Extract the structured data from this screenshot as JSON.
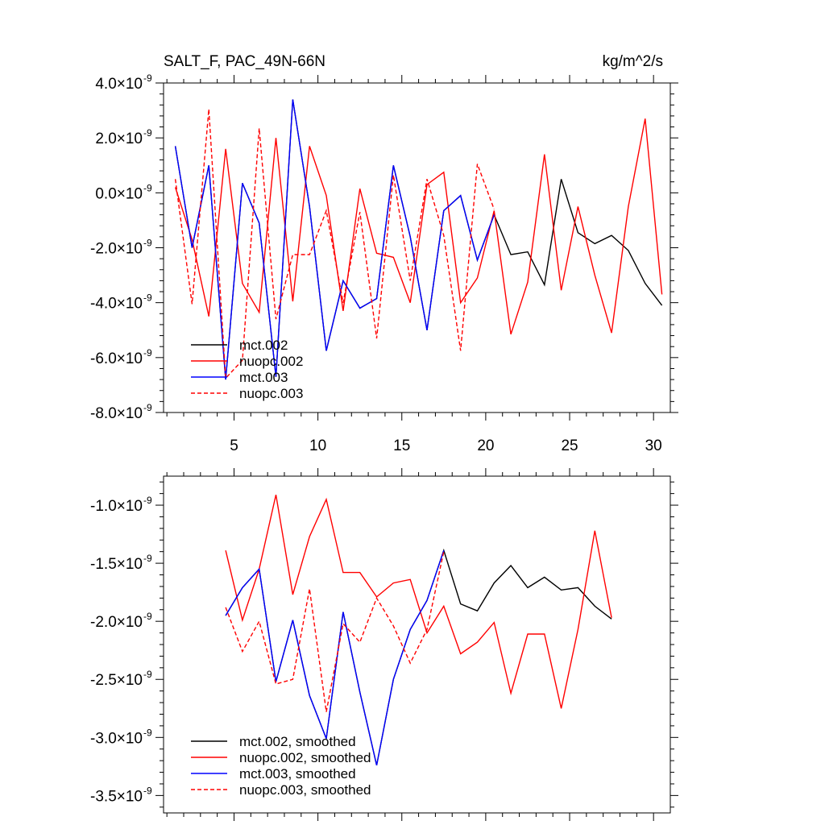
{
  "chart_data": [
    {
      "type": "line",
      "title": "SALT_F, PAC_49N-66N",
      "units": "kg/m^2/s",
      "xlabel": "",
      "ylabel": "",
      "xlim": [
        0.8,
        31.0
      ],
      "ylim": [
        -8e-09,
        4e-09
      ],
      "xticks": [
        5,
        10,
        15,
        20,
        25,
        30
      ],
      "xtick_labels": [
        "5",
        "10",
        "15",
        "20",
        "25",
        "30"
      ],
      "yticks": [
        4e-09,
        2e-09,
        0.0,
        -2e-09,
        -4e-09,
        -6e-09,
        -8e-09
      ],
      "ytick_labels": [
        {
          "mantissa": "4.0",
          "exponent": "-9"
        },
        {
          "mantissa": "2.0",
          "exponent": "-9"
        },
        {
          "mantissa": "0.0",
          "exponent": "-9"
        },
        {
          "mantissa": "-2.0",
          "exponent": "-9"
        },
        {
          "mantissa": "-4.0",
          "exponent": "-9"
        },
        {
          "mantissa": "-6.0",
          "exponent": "-9"
        },
        {
          "mantissa": "-8.0",
          "exponent": "-9"
        }
      ],
      "times_symbol": "×10",
      "grid": false,
      "legend_position": "bottom-left",
      "series": [
        {
          "name": "mct.002",
          "color": "#000000",
          "dash": "solid",
          "x": [
            1.5,
            2.5,
            3.5,
            4.5,
            5.5,
            6.5,
            7.5,
            8.5,
            9.5,
            10.5,
            11.5,
            12.5,
            13.5,
            14.5,
            15.5,
            16.5,
            17.5,
            18.5,
            19.5,
            20.5,
            21.5,
            22.5,
            23.5,
            24.5,
            25.5,
            26.5,
            27.5,
            28.5,
            29.5,
            30.5
          ],
          "y": [
            1.7e-09,
            -2e-09,
            1e-09,
            -6.8e-09,
            3.5e-10,
            -1.1e-09,
            -6.7e-09,
            3.4e-09,
            -5e-10,
            -5.75e-09,
            -3.2e-09,
            -4.2e-09,
            -3.85e-09,
            1e-09,
            -1.6e-09,
            -5e-09,
            -6.5e-10,
            -1e-10,
            -2.45e-09,
            -8e-10,
            -2.25e-09,
            -2.15e-09,
            -3.35e-09,
            5e-10,
            -1.45e-09,
            -1.85e-09,
            -1.55e-09,
            -2.1e-09,
            -3.3e-09,
            -4.1e-09
          ]
        },
        {
          "name": "nuopc.002",
          "color": "#ff0000",
          "dash": "solid",
          "x": [
            1.5,
            2.5,
            3.5,
            4.5,
            5.5,
            6.5,
            7.5,
            8.5,
            9.5,
            10.5,
            11.5,
            12.5,
            13.5,
            14.5,
            15.5,
            16.5,
            17.5,
            18.5,
            19.5,
            20.5,
            21.5,
            22.5,
            23.5,
            24.5,
            25.5,
            26.5,
            27.5,
            28.5,
            29.5,
            30.5
          ],
          "y": [
            2e-10,
            -1.7e-09,
            -4.5e-09,
            1.6e-09,
            -3.3e-09,
            -4.35e-09,
            2e-09,
            -3.95e-09,
            1.7e-09,
            -1e-10,
            -4.3e-09,
            1.5e-10,
            -2.2e-09,
            -2.35e-09,
            -4e-09,
            3e-10,
            7.5e-10,
            -4e-09,
            -3.1e-09,
            -6.5e-10,
            -5.15e-09,
            -3.25e-09,
            1.4e-09,
            -3.55e-09,
            -5e-10,
            -3e-09,
            -5.1e-09,
            -5e-10,
            2.7e-09,
            -3.7e-09
          ]
        },
        {
          "name": "mct.003",
          "color": "#0000ff",
          "dash": "solid",
          "x": [
            1.5,
            2.5,
            3.5,
            4.5,
            5.5,
            6.5,
            7.5,
            8.5,
            9.5,
            10.5,
            11.5,
            12.5,
            13.5,
            14.5,
            15.5,
            16.5,
            17.5,
            18.5,
            19.5,
            20.5
          ],
          "y": [
            1.7e-09,
            -2e-09,
            1e-09,
            -6.8e-09,
            3.5e-10,
            -1.1e-09,
            -6.7e-09,
            3.4e-09,
            -5e-10,
            -5.75e-09,
            -3.2e-09,
            -4.2e-09,
            -3.85e-09,
            1e-09,
            -1.6e-09,
            -5e-09,
            -6.5e-10,
            -1e-10,
            -2.45e-09,
            -8e-10
          ]
        },
        {
          "name": "nuopc.003",
          "color": "#ff0000",
          "dash": "dashed",
          "x": [
            1.5,
            2.5,
            3.5,
            4.5,
            5.5,
            6.5,
            7.5,
            8.5,
            9.5,
            10.5,
            11.5,
            12.5,
            13.5,
            14.5,
            15.5,
            16.5,
            17.5,
            18.5,
            19.5,
            20.5
          ],
          "y": [
            5e-10,
            -4.05e-09,
            3.05e-09,
            -6.75e-09,
            -6.1e-09,
            2.35e-09,
            -4.6e-09,
            -2.25e-09,
            -2.25e-09,
            -6.5e-10,
            -4e-09,
            -7e-10,
            -5.3e-09,
            6.5e-10,
            -3.2e-09,
            5e-10,
            -1.55e-09,
            -5.75e-09,
            1.05e-09,
            -6e-10
          ]
        }
      ]
    },
    {
      "type": "line",
      "title": "",
      "xlabel": "",
      "ylabel": "",
      "xlim": [
        0.8,
        31.0
      ],
      "ylim": [
        -3.65e-09,
        -7.5e-10
      ],
      "xticks": [
        5,
        10,
        15,
        20,
        25,
        30
      ],
      "xtick_labels": [],
      "yticks": [
        -1e-09,
        -1.5e-09,
        -2e-09,
        -2.5e-09,
        -3e-09,
        -3.5e-09
      ],
      "ytick_labels": [
        {
          "mantissa": "-1.0",
          "exponent": "-9"
        },
        {
          "mantissa": "-1.5",
          "exponent": "-9"
        },
        {
          "mantissa": "-2.0",
          "exponent": "-9"
        },
        {
          "mantissa": "-2.5",
          "exponent": "-9"
        },
        {
          "mantissa": "-3.0",
          "exponent": "-9"
        },
        {
          "mantissa": "-3.5",
          "exponent": "-9"
        }
      ],
      "times_symbol": "×10",
      "grid": false,
      "legend_position": "bottom-left",
      "series": [
        {
          "name": "mct.002, smoothed",
          "color": "#000000",
          "dash": "solid",
          "x": [
            4.5,
            5.5,
            6.5,
            7.5,
            8.5,
            9.5,
            10.5,
            11.5,
            12.5,
            13.5,
            14.5,
            15.5,
            16.5,
            17.5,
            18.5,
            19.5,
            20.5,
            21.5,
            22.5,
            23.5,
            24.5,
            25.5,
            26.5,
            27.5
          ],
          "y": [
            -1.95e-09,
            -1.71e-09,
            -1.55e-09,
            -2.52e-09,
            -1.99e-09,
            -2.64e-09,
            -3.01e-09,
            -1.92e-09,
            -2.61e-09,
            -3.24e-09,
            -2.5e-09,
            -2.07e-09,
            -1.82e-09,
            -1.39e-09,
            -1.85e-09,
            -1.91e-09,
            -1.67e-09,
            -1.52e-09,
            -1.71e-09,
            -1.62e-09,
            -1.73e-09,
            -1.71e-09,
            -1.87e-09,
            -1.98e-09
          ]
        },
        {
          "name": "nuopc.002, smoothed",
          "color": "#ff0000",
          "dash": "solid",
          "x": [
            4.5,
            5.5,
            6.5,
            7.5,
            8.5,
            9.5,
            10.5,
            11.5,
            12.5,
            13.5,
            14.5,
            15.5,
            16.5,
            17.5,
            18.5,
            19.5,
            20.5,
            21.5,
            22.5,
            23.5,
            24.5,
            25.5,
            26.5,
            27.5
          ],
          "y": [
            -1.39e-09,
            -1.99e-09,
            -1.55e-09,
            -9.1e-10,
            -1.77e-09,
            -1.27e-09,
            -9.5e-10,
            -1.58e-09,
            -1.58e-09,
            -1.79e-09,
            -1.67e-09,
            -1.64e-09,
            -2.1e-09,
            -1.87e-09,
            -2.28e-09,
            -2.18e-09,
            -2.01e-09,
            -2.62e-09,
            -2.11e-09,
            -2.11e-09,
            -2.75e-09,
            -2.07e-09,
            -1.22e-09,
            -1.97e-09
          ]
        },
        {
          "name": "mct.003, smoothed",
          "color": "#0000ff",
          "dash": "solid",
          "x": [
            4.5,
            5.5,
            6.5,
            7.5,
            8.5,
            9.5,
            10.5,
            11.5,
            12.5,
            13.5,
            14.5,
            15.5,
            16.5,
            17.5
          ],
          "y": [
            -1.95e-09,
            -1.71e-09,
            -1.55e-09,
            -2.52e-09,
            -1.99e-09,
            -2.64e-09,
            -3.01e-09,
            -1.92e-09,
            -2.61e-09,
            -3.24e-09,
            -2.5e-09,
            -2.07e-09,
            -1.82e-09,
            -1.39e-09
          ]
        },
        {
          "name": "nuopc.003, smoothed",
          "color": "#ff0000",
          "dash": "dashed",
          "x": [
            4.5,
            5.5,
            6.5,
            7.5,
            8.5,
            9.5,
            10.5,
            11.5,
            12.5,
            13.5,
            14.5,
            15.5,
            16.5,
            17.5
          ],
          "y": [
            -1.88e-09,
            -2.26e-09,
            -2e-09,
            -2.54e-09,
            -2.5e-09,
            -1.72e-09,
            -2.78e-09,
            -2.02e-09,
            -2.18e-09,
            -1.8e-09,
            -2.04e-09,
            -2.36e-09,
            -2.07e-09,
            -1.4e-09
          ]
        }
      ]
    }
  ]
}
